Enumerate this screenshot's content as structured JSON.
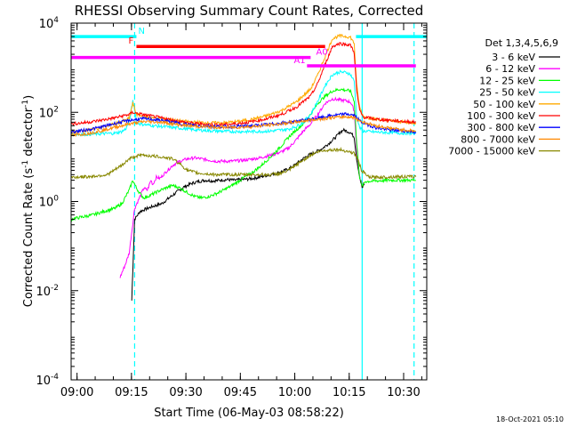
{
  "chart_data": {
    "type": "line",
    "title": "RHESSI Observing Summary Count Rates, Corrected",
    "ylabel": "Corrected Count Rate (s^-1 detector^-1)",
    "ylabel_main": "Corrected Count Rate (s",
    "ylabel_exp1": "-1",
    "ylabel_mid": " detector",
    "ylabel_exp2": "-1",
    "ylabel_end": ")",
    "xlabel": "Start Time (06-May-03 08:58:22)",
    "yscale": "log",
    "ylim": [
      0.0001,
      10000
    ],
    "xlim_minutes": [
      0,
      98
    ],
    "y_ticks": [
      {
        "value": 0.0001,
        "base": "10",
        "exp": "-4"
      },
      {
        "value": 0.01,
        "base": "10",
        "exp": "-2"
      },
      {
        "value": 1,
        "base": "10",
        "exp": "0"
      },
      {
        "value": 100,
        "base": "10",
        "exp": "2"
      },
      {
        "value": 10000,
        "base": "10",
        "exp": "4"
      }
    ],
    "x_ticks": [
      {
        "minute": 1.63,
        "label": "09:00"
      },
      {
        "minute": 16.63,
        "label": "09:15"
      },
      {
        "minute": 31.63,
        "label": "09:30"
      },
      {
        "minute": 46.63,
        "label": "09:45"
      },
      {
        "minute": 61.63,
        "label": "10:00"
      },
      {
        "minute": 76.63,
        "label": "10:15"
      },
      {
        "minute": 91.63,
        "label": "10:30"
      }
    ],
    "legend_title": "Det 1,3,4,5,6,9",
    "series": [
      {
        "name": "3 - 6 keV",
        "color": "#000000",
        "x": [
          16.7,
          17.5,
          19,
          21,
          23,
          25,
          27,
          29,
          31,
          33,
          35,
          37,
          39,
          41,
          43,
          45,
          47,
          49,
          51,
          53,
          55,
          57,
          59,
          61,
          63,
          65,
          67,
          69,
          71,
          73,
          74,
          75,
          76,
          77,
          78,
          78.7,
          79.5,
          80.2,
          80.8
        ],
        "y": [
          0.006,
          0.4,
          0.6,
          0.7,
          0.8,
          0.9,
          1.2,
          1.6,
          2.1,
          2.5,
          2.8,
          3.0,
          2.9,
          3.0,
          3.1,
          3.0,
          3.1,
          3.2,
          3.4,
          3.7,
          4.0,
          4.4,
          5.0,
          6.0,
          8.0,
          10.5,
          12.5,
          15.0,
          20.0,
          28.0,
          35.0,
          40.0,
          38.0,
          35.0,
          28.0,
          9.0,
          3.5,
          2.0,
          2.5
        ]
      },
      {
        "name": "6 - 12 keV",
        "color": "#ff00ff",
        "x": [
          13.5,
          15,
          16,
          17.5,
          19,
          20,
          21,
          22,
          22.5,
          23.5,
          24.5,
          26,
          28,
          30,
          32,
          34,
          36,
          38,
          40,
          42,
          44,
          46,
          48,
          50,
          52,
          54,
          56,
          58,
          60,
          62,
          64,
          66,
          68,
          70,
          72,
          74,
          76,
          77,
          78,
          78.7,
          79.5,
          80.2
        ],
        "y": [
          0.02,
          0.04,
          0.07,
          0.7,
          1.3,
          2.0,
          1.8,
          3.0,
          2.4,
          3.5,
          3.3,
          4.5,
          6.5,
          8.0,
          9.0,
          9.5,
          9.0,
          8.5,
          8.0,
          8.0,
          8.0,
          8.2,
          8.5,
          9.0,
          9.5,
          10.5,
          11.5,
          13.0,
          16.0,
          24.0,
          38.0,
          55.0,
          90.0,
          160.0,
          200.0,
          190.0,
          180.0,
          170.0,
          110.0,
          15.0,
          3.5,
          2.5
        ]
      },
      {
        "name": "12 - 25 keV",
        "color": "#00ff00",
        "x": [
          0,
          3,
          6,
          9,
          12,
          14,
          16,
          17,
          18,
          19,
          20,
          22,
          24,
          26,
          28,
          30,
          32,
          34,
          36,
          38,
          40,
          42,
          44,
          46,
          48,
          50,
          52,
          54,
          56,
          58,
          60,
          62,
          64,
          66,
          68,
          70,
          72,
          74,
          76,
          77,
          78,
          78.7,
          79.5,
          80.2,
          81,
          84,
          88,
          92,
          95
        ],
        "y": [
          0.4,
          0.45,
          0.5,
          0.6,
          0.7,
          0.9,
          1.8,
          3.0,
          2.0,
          1.5,
          1.2,
          1.4,
          1.7,
          2.0,
          2.3,
          2.0,
          1.6,
          1.3,
          1.2,
          1.3,
          1.5,
          1.8,
          2.2,
          2.8,
          3.6,
          4.5,
          6.0,
          8.5,
          12.0,
          18.0,
          28.0,
          40.0,
          55.0,
          90.0,
          160.0,
          230.0,
          300.0,
          330.0,
          310.0,
          300.0,
          180.0,
          20.0,
          3.5,
          2.2,
          2.8,
          2.9,
          3.0,
          3.0,
          3.0
        ]
      },
      {
        "name": "25 - 50 keV",
        "color": "#00ffff",
        "x": [
          0,
          4,
          8,
          12,
          14,
          15,
          16,
          17,
          17.5,
          18,
          19,
          21,
          25,
          30,
          35,
          40,
          45,
          50,
          55,
          60,
          62,
          64,
          66,
          68,
          70,
          72,
          74,
          76,
          77,
          78,
          78.7,
          79.5,
          80.5,
          84,
          88,
          92,
          95
        ],
        "y": [
          32,
          32,
          33,
          34,
          37,
          42,
          60,
          180,
          120,
          60,
          55,
          52,
          48,
          44,
          40,
          38,
          37,
          37,
          38,
          42,
          48,
          60,
          90,
          180,
          400,
          700,
          800,
          780,
          700,
          500,
          80,
          45,
          38,
          36,
          35,
          34,
          34
        ]
      },
      {
        "name": "50 - 100 keV",
        "color": "#ffaa00",
        "x": [
          0,
          3,
          6,
          9,
          12,
          14,
          16,
          17,
          18,
          20,
          23,
          26,
          30,
          34,
          38,
          42,
          46,
          50,
          54,
          58,
          62,
          66,
          68,
          70,
          72,
          74,
          76,
          77,
          78,
          78.7,
          79.5,
          80.5,
          84,
          88,
          92,
          95
        ],
        "y": [
          36,
          38,
          42,
          48,
          55,
          62,
          72,
          160,
          90,
          80,
          75,
          70,
          64,
          60,
          58,
          58,
          62,
          70,
          84,
          110,
          170,
          330,
          700,
          1800,
          4500,
          5200,
          5000,
          4800,
          3500,
          400,
          130,
          80,
          70,
          65,
          60,
          58
        ]
      },
      {
        "name": "100 - 300 keV",
        "color": "#ff0000",
        "x": [
          0,
          3,
          6,
          9,
          12,
          14,
          16,
          17,
          18,
          20,
          23,
          26,
          30,
          34,
          38,
          42,
          46,
          50,
          54,
          58,
          62,
          66,
          68,
          70,
          72,
          74,
          76,
          77,
          78,
          78.7,
          79.5,
          80.5,
          84,
          88,
          92,
          95
        ],
        "y": [
          55,
          58,
          62,
          68,
          75,
          82,
          90,
          100,
          95,
          88,
          80,
          72,
          62,
          56,
          53,
          53,
          56,
          62,
          72,
          90,
          130,
          230,
          450,
          1200,
          3000,
          3500,
          3300,
          3200,
          2200,
          300,
          110,
          78,
          70,
          66,
          62,
          60
        ]
      },
      {
        "name": "300 - 800 keV",
        "color": "#0000ff",
        "x": [
          0,
          4,
          8,
          12,
          16,
          20,
          25,
          30,
          35,
          40,
          45,
          50,
          55,
          60,
          64,
          68,
          72,
          76,
          78,
          80,
          84,
          88,
          92,
          95
        ],
        "y": [
          36,
          40,
          46,
          56,
          66,
          72,
          66,
          56,
          50,
          48,
          48,
          50,
          54,
          60,
          66,
          74,
          85,
          92,
          85,
          60,
          45,
          40,
          38,
          36
        ]
      },
      {
        "name": "800 - 7000 keV",
        "color": "#ff8800",
        "x": [
          0,
          4,
          8,
          12,
          16,
          20,
          25,
          30,
          35,
          40,
          45,
          50,
          55,
          60,
          64,
          68,
          72,
          76,
          78,
          80,
          84,
          88,
          92,
          95
        ],
        "y": [
          30,
          33,
          38,
          46,
          55,
          62,
          60,
          52,
          48,
          46,
          46,
          48,
          52,
          58,
          64,
          70,
          76,
          80,
          76,
          62,
          50,
          44,
          40,
          38
        ]
      },
      {
        "name": "7000 - 15000 keV",
        "color": "#888800",
        "x": [
          0,
          5,
          10,
          14,
          16,
          18,
          20,
          22,
          25,
          28,
          30,
          32,
          35,
          40,
          45,
          50,
          55,
          58,
          60,
          62,
          64,
          66,
          68,
          70,
          72,
          74,
          76,
          78,
          79,
          80,
          82,
          85,
          90,
          95
        ],
        "y": [
          3.5,
          3.6,
          4.0,
          6.5,
          9.0,
          10.5,
          11.0,
          10.5,
          10.0,
          9.0,
          7.0,
          5.0,
          4.3,
          4.0,
          4.0,
          4.0,
          4.0,
          4.3,
          5.0,
          6.5,
          8.5,
          11.0,
          13.0,
          14.0,
          14.5,
          14.5,
          13.5,
          12.0,
          9.0,
          5.0,
          3.5,
          3.5,
          3.6,
          3.6
        ]
      }
    ],
    "annotations": [
      {
        "label": "N",
        "color": "#00ffff",
        "x_start": 0,
        "x_end": 18,
        "y": 5000,
        "label_x": 18.5,
        "label_side": "right"
      },
      {
        "label": "N",
        "color": "#00ffff",
        "x_start": 78.5,
        "x_end": 98,
        "y": 5000,
        "label_x": null,
        "label_side": "none"
      },
      {
        "label": "F",
        "color": "#ff0000",
        "x_start": 18,
        "x_end": 70,
        "y": 3000,
        "label_x": 17.2,
        "label_side": "left"
      },
      {
        "label": "A0",
        "color": "#ff00ff",
        "x_start": 0,
        "x_end": 66,
        "y": 1700,
        "label_x": 67.5,
        "label_side": "right"
      },
      {
        "label": "A1",
        "color": "#ff00ff",
        "x_start": 65,
        "x_end": 95,
        "y": 1100,
        "label_x": 64.6,
        "label_side": "left"
      }
    ],
    "vertical_lines": [
      {
        "minute": 17.5,
        "color": "#00ffff",
        "style": "dashed"
      },
      {
        "minute": 80.2,
        "color": "#00ffff",
        "style": "solid"
      },
      {
        "minute": 94.5,
        "color": "#00ffff",
        "style": "dashed"
      }
    ]
  },
  "footer_timestamp": "18-Oct-2021 05:10"
}
